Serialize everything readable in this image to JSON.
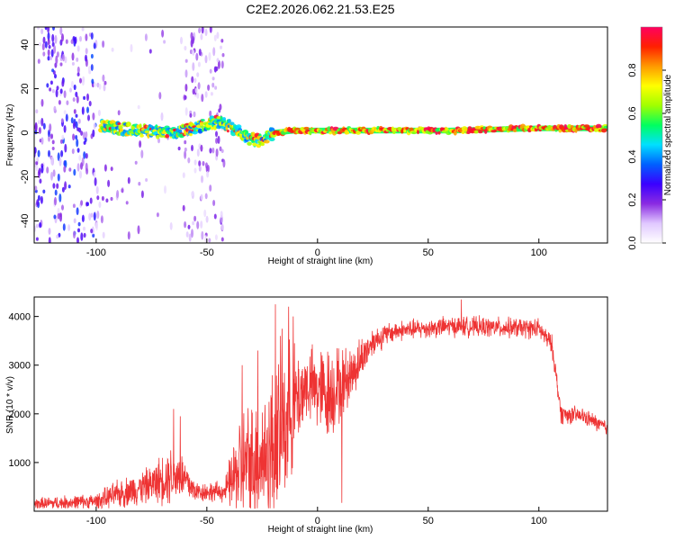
{
  "title": "C2E2.2026.062.21.53.E25",
  "chart_data": [
    {
      "type": "heatmap",
      "name": "spectrogram",
      "xlabel": "Height of straight line (km)",
      "ylabel": "Frequency (Hz)",
      "xlim": [
        -128,
        131
      ],
      "ylim": [
        -50,
        48
      ],
      "xticks": [
        -100,
        -50,
        0,
        50,
        100
      ],
      "yticks": [
        -40,
        -20,
        0,
        20,
        40
      ],
      "colorbar": {
        "label": "Normalized spectral amplitude",
        "range": [
          0.0,
          1.0
        ],
        "ticks": [
          0.0,
          0.2,
          0.4,
          0.6,
          0.8
        ],
        "colors": [
          "#ffffff",
          "#e0c8ff",
          "#8a2be2",
          "#3a00ff",
          "#0060ff",
          "#00e0ff",
          "#00ff60",
          "#a0ff00",
          "#ffff00",
          "#ff9900",
          "#ff2000",
          "#ff0060"
        ]
      },
      "ridge": [
        {
          "x": -98,
          "f": 3
        },
        {
          "x": -90,
          "f": 2
        },
        {
          "x": -80,
          "f": 1
        },
        {
          "x": -70,
          "f": 0
        },
        {
          "x": -60,
          "f": 1
        },
        {
          "x": -50,
          "f": 4
        },
        {
          "x": -45,
          "f": 5
        },
        {
          "x": -40,
          "f": 3
        },
        {
          "x": -35,
          "f": 0
        },
        {
          "x": -30,
          "f": -3
        },
        {
          "x": -25,
          "f": -4
        },
        {
          "x": -20,
          "f": 0
        },
        {
          "x": -10,
          "f": 1
        },
        {
          "x": 0,
          "f": 1
        },
        {
          "x": 20,
          "f": 1
        },
        {
          "x": 60,
          "f": 1
        },
        {
          "x": 100,
          "f": 2
        },
        {
          "x": 131,
          "f": 2
        }
      ]
    },
    {
      "type": "line",
      "name": "snr",
      "xlabel": "Height of straight line (km)",
      "ylabel": "SNR (10 * v/v)",
      "xlim": [
        -128,
        131
      ],
      "ylim": [
        0,
        4400
      ],
      "xticks": [
        -100,
        -50,
        0,
        50,
        100
      ],
      "yticks": [
        1000,
        2000,
        3000,
        4000
      ],
      "color": "#ee3333",
      "envelope": [
        {
          "x": -128,
          "base": 150,
          "amp": 150
        },
        {
          "x": -100,
          "base": 200,
          "amp": 200
        },
        {
          "x": -90,
          "base": 350,
          "amp": 350
        },
        {
          "x": -75,
          "base": 550,
          "amp": 450
        },
        {
          "x": -65,
          "base": 800,
          "amp": 800
        },
        {
          "x": -60,
          "base": 650,
          "amp": 600
        },
        {
          "x": -55,
          "base": 400,
          "amp": 250
        },
        {
          "x": -42,
          "base": 400,
          "amp": 250
        },
        {
          "x": -35,
          "base": 900,
          "amp": 1400
        },
        {
          "x": -25,
          "base": 1100,
          "amp": 1600
        },
        {
          "x": -18,
          "base": 1400,
          "amp": 2200
        },
        {
          "x": -12,
          "base": 2100,
          "amp": 1600
        },
        {
          "x": -5,
          "base": 2600,
          "amp": 900
        },
        {
          "x": 5,
          "base": 2400,
          "amp": 1200
        },
        {
          "x": 15,
          "base": 2800,
          "amp": 700
        },
        {
          "x": 25,
          "base": 3500,
          "amp": 350
        },
        {
          "x": 35,
          "base": 3700,
          "amp": 250
        },
        {
          "x": 60,
          "base": 3800,
          "amp": 250
        },
        {
          "x": 100,
          "base": 3750,
          "amp": 250
        },
        {
          "x": 106,
          "base": 3400,
          "amp": 250
        },
        {
          "x": 110,
          "base": 2000,
          "amp": 250
        },
        {
          "x": 120,
          "base": 1950,
          "amp": 200
        },
        {
          "x": 131,
          "base": 1700,
          "amp": 200
        }
      ],
      "spikes": [
        {
          "x": -65,
          "y": 2100
        },
        {
          "x": -62,
          "y": 1950
        },
        {
          "x": -34,
          "y": 3000
        },
        {
          "x": -27,
          "y": 3300
        },
        {
          "x": -19,
          "y": 4250
        },
        {
          "x": -16,
          "y": 3750
        },
        {
          "x": -13,
          "y": 4200
        },
        {
          "x": -11,
          "y": 4000
        },
        {
          "x": 65,
          "y": 4350
        },
        {
          "x": 11,
          "y": 170
        }
      ]
    }
  ]
}
